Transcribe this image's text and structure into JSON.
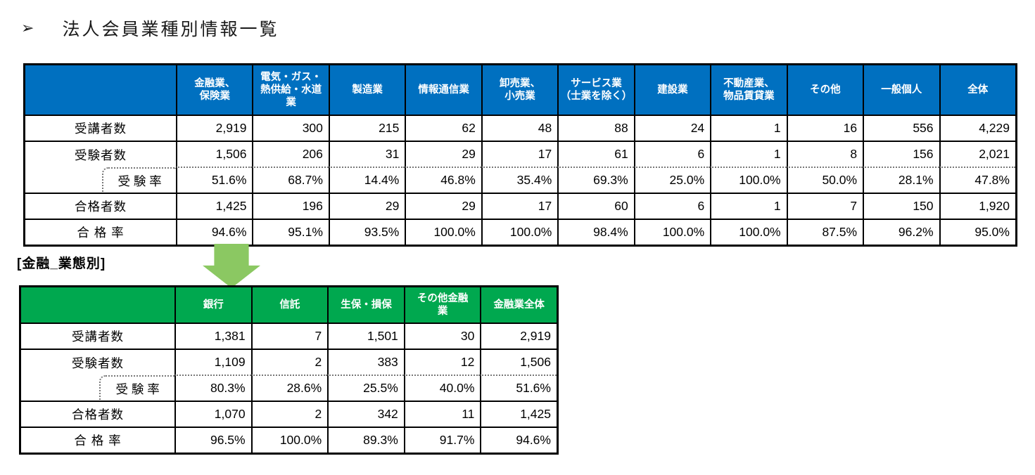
{
  "page": {
    "bullet": "➢",
    "title": "法人会員業種別情報一覧"
  },
  "colors": {
    "table1_header_bg": "#0070C0",
    "table2_header_bg": "#00A84F",
    "arrow_color": "#8BC862",
    "border": "#000000",
    "dotted_border": "#787878"
  },
  "finance_section": {
    "label": "[金融_業態別]"
  },
  "table1": {
    "header": [
      "",
      "金融業、\n保険業",
      "電気・ガス・\n熱供給・水道\n業",
      "製造業",
      "情報通信業",
      "卸売業、\n小売業",
      "サービス業\n（士業を除く）",
      "建設業",
      "不動産業、\n物品賃貸業",
      "その他",
      "一般個人",
      "全体"
    ],
    "rows": [
      {
        "label": "受講者数",
        "indent": false,
        "values": [
          "2,919",
          "300",
          "215",
          "62",
          "48",
          "88",
          "24",
          "1",
          "16",
          "556",
          "4,229"
        ]
      },
      {
        "label": "受験者数",
        "indent": false,
        "values": [
          "1,506",
          "206",
          "31",
          "29",
          "17",
          "61",
          "6",
          "1",
          "8",
          "156",
          "2,021"
        ]
      },
      {
        "label": "受 験 率",
        "indent": true,
        "values": [
          "51.6%",
          "68.7%",
          "14.4%",
          "46.8%",
          "35.4%",
          "69.3%",
          "25.0%",
          "100.0%",
          "50.0%",
          "28.1%",
          "47.8%"
        ]
      },
      {
        "label": "合格者数",
        "indent": false,
        "values": [
          "1,425",
          "196",
          "29",
          "29",
          "17",
          "60",
          "6",
          "1",
          "7",
          "150",
          "1,920"
        ]
      },
      {
        "label": "合 格 率",
        "indent": false,
        "values": [
          "94.6%",
          "95.1%",
          "93.5%",
          "100.0%",
          "100.0%",
          "98.4%",
          "100.0%",
          "100.0%",
          "87.5%",
          "96.2%",
          "95.0%"
        ]
      }
    ]
  },
  "table2": {
    "header": [
      "",
      "銀行",
      "信託",
      "生保・損保",
      "その他金融\n業",
      "金融業全体"
    ],
    "rows": [
      {
        "label": "受講者数",
        "indent": false,
        "values": [
          "1,381",
          "7",
          "1,501",
          "30",
          "2,919"
        ]
      },
      {
        "label": "受験者数",
        "indent": false,
        "values": [
          "1,109",
          "2",
          "383",
          "12",
          "1,506"
        ]
      },
      {
        "label": "受 験 率",
        "indent": true,
        "values": [
          "80.3%",
          "28.6%",
          "25.5%",
          "40.0%",
          "51.6%"
        ]
      },
      {
        "label": "合格者数",
        "indent": false,
        "values": [
          "1,070",
          "2",
          "342",
          "11",
          "1,425"
        ]
      },
      {
        "label": "合 格 率",
        "indent": false,
        "values": [
          "96.5%",
          "100.0%",
          "89.3%",
          "91.7%",
          "94.6%"
        ]
      }
    ]
  }
}
